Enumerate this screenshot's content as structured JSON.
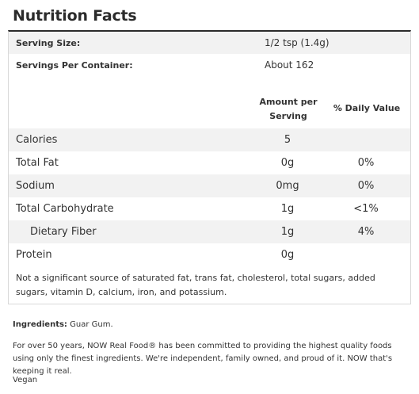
{
  "title": "Nutrition Facts",
  "serving": {
    "size_label": "Serving Size:",
    "size_value": "1/2 tsp (1.4g)",
    "per_container_label": "Servings Per Container:",
    "per_container_value": "About 162"
  },
  "table_header": {
    "amount": "Amount per Serving",
    "daily_value": "% Daily Value"
  },
  "nutrients": [
    {
      "name": "Calories",
      "amount": "5",
      "dv": ""
    },
    {
      "name": "Total Fat",
      "amount": "0g",
      "dv": "0%"
    },
    {
      "name": "Sodium",
      "amount": "0mg",
      "dv": "0%"
    },
    {
      "name": "Total Carbohydrate",
      "amount": "1g",
      "dv": "<1%"
    },
    {
      "name": "Dietary Fiber",
      "amount": "1g",
      "dv": "4%"
    },
    {
      "name": "Protein",
      "amount": "0g",
      "dv": ""
    }
  ],
  "footnote": "Not a significant source of saturated fat, trans fat, cholesterol, total sugars, added sugars, vitamin D, calcium, iron, and potassium.",
  "ingredients": {
    "label": "Ingredients:",
    "text": "Guar Gum."
  },
  "statement": "For over 50 years, NOW Real Food® has been committed to providing the highest quality foods using only the finest ingredients. We're independent, family owned, and proud of it. NOW that's keeping it real.",
  "tag": "Vegan",
  "colors": {
    "title": "#2b2b2b",
    "text": "#333333",
    "row_shade": "#f2f2f2",
    "border": "#d8d8d8"
  }
}
